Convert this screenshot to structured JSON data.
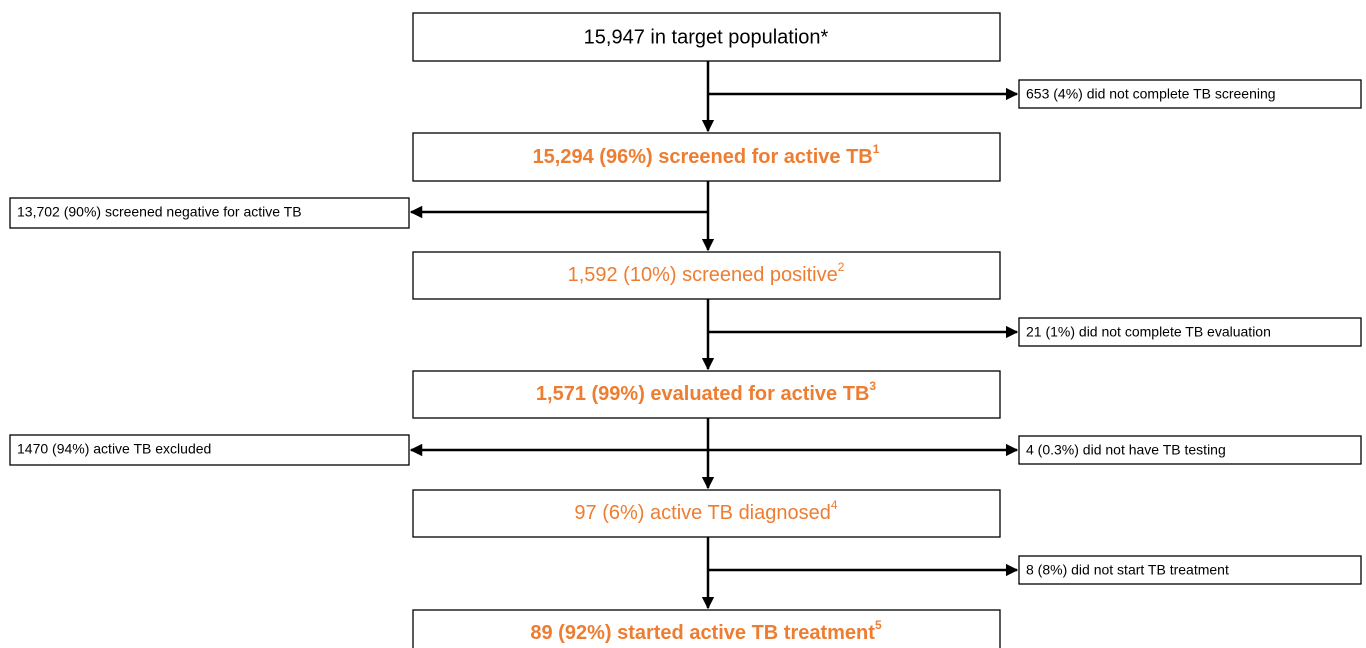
{
  "boxes": [
    {
      "text": "15,947 in target population*"
    },
    {
      "text": "15,294 (96%) screened for active TB",
      "sup": "1"
    },
    {
      "text": "1,592 (10%) screened positive",
      "sup": "2"
    },
    {
      "text": "1,571 (99%) evaluated for active TB",
      "sup": "3"
    },
    {
      "text": "97 (6%) active TB diagnosed",
      "sup": "4"
    },
    {
      "text": "89 (92%) started active TB treatment",
      "sup": "5"
    }
  ],
  "exits": [
    {
      "text": "653 (4%) did not complete TB screening"
    },
    {
      "text": "13,702 (90%) screened negative for active TB"
    },
    {
      "text": "21 (1%) did not complete TB evaluation"
    },
    {
      "text": "1470 (94%) active TB excluded"
    },
    {
      "text": "4 (0.3%) did not have TB testing"
    },
    {
      "text": "8 (8%) did not start TB treatment"
    }
  ]
}
